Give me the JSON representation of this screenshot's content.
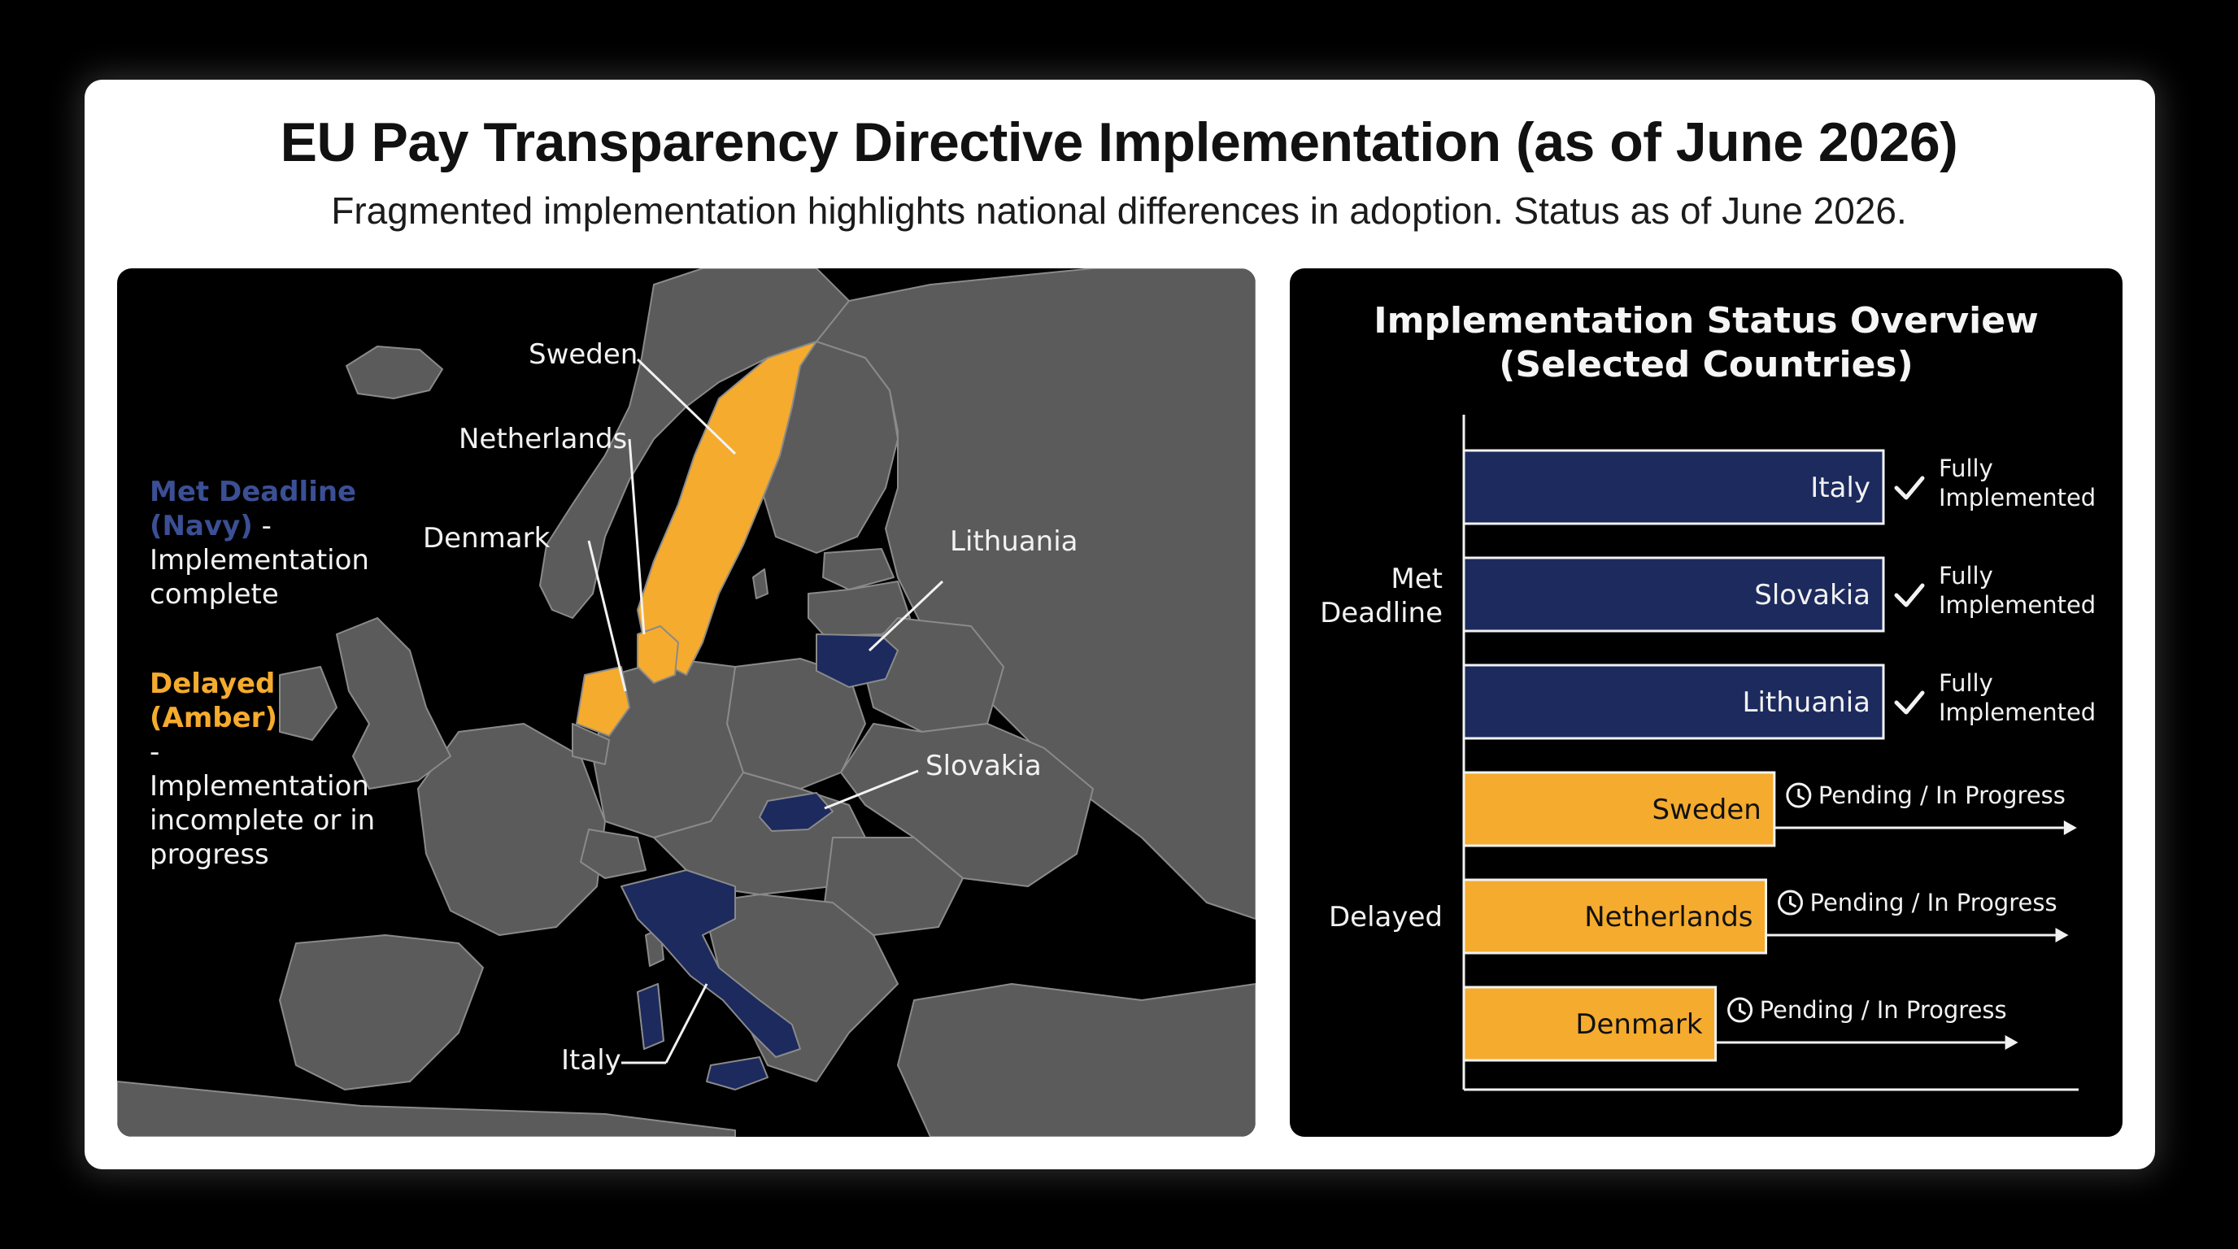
{
  "title": "EU Pay Transparency Directive Implementation (as of June 2026)",
  "subtitle": "Fragmented implementation highlights national differences in adoption. Status as of June 2026.",
  "colors": {
    "navy": "#1c2a5e",
    "amber": "#f5ab2e",
    "land": "#5b5b5b",
    "water": "#000000",
    "border": "#8a8a8a"
  },
  "map": {
    "legend": {
      "met_head": "Met Deadline (Navy)",
      "met_dash": " -",
      "met_desc": "Implementation complete",
      "delayed_head": "Delayed (Amber)",
      "delayed_dash": "-",
      "delayed_desc": "Implementation incomplete or in progress"
    },
    "labels": {
      "sweden": "Sweden",
      "netherlands": "Netherlands",
      "denmark": "Denmark",
      "lithuania": "Lithuania",
      "slovakia": "Slovakia",
      "italy": "Italy"
    },
    "country_status": {
      "Sweden": "Delayed",
      "Netherlands": "Delayed",
      "Denmark": "Delayed",
      "Lithuania": "Met Deadline",
      "Slovakia": "Met Deadline",
      "Italy": "Met Deadline"
    }
  },
  "chart_data": {
    "type": "bar",
    "title": "Implementation Status Overview (Selected Countries)",
    "orientation": "horizontal",
    "groups": [
      {
        "name": "Met Deadline",
        "categories": [
          "Italy",
          "Slovakia",
          "Lithuania"
        ]
      },
      {
        "name": "Delayed",
        "categories": [
          "Sweden",
          "Netherlands",
          "Denmark"
        ]
      }
    ],
    "categories": [
      "Italy",
      "Slovakia",
      "Lithuania",
      "Sweden",
      "Netherlands",
      "Denmark"
    ],
    "values": [
      1.0,
      1.0,
      1.0,
      0.74,
      0.72,
      0.6
    ],
    "status_labels": [
      "Fully Implemented",
      "Fully Implemented",
      "Fully Implemented",
      "Pending / In Progress",
      "Pending / In Progress",
      "Pending / In Progress"
    ],
    "status_icons": [
      "check-icon",
      "check-icon",
      "check-icon",
      "clock-icon",
      "clock-icon",
      "clock-icon"
    ],
    "bar_colors": [
      "#1c2a5e",
      "#1c2a5e",
      "#1c2a5e",
      "#f5ab2e",
      "#f5ab2e",
      "#f5ab2e"
    ],
    "xlim": [
      0,
      1
    ],
    "grid": false,
    "legend": "none"
  }
}
